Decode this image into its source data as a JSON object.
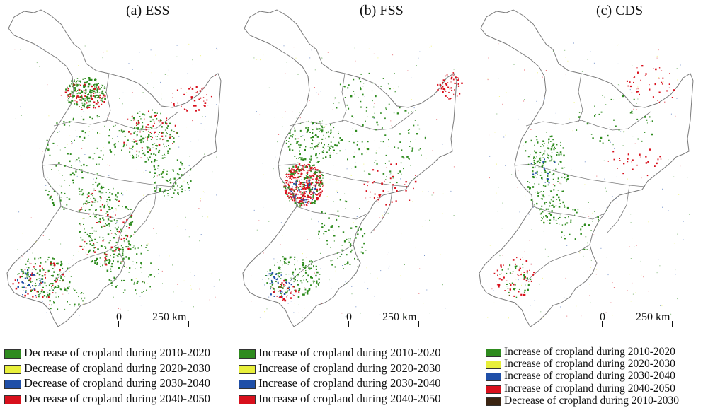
{
  "colors": {
    "green": "#2e8b1e",
    "yellow": "#e8ef3a",
    "blue": "#1f4fa8",
    "red": "#d8101c",
    "brown": "#3b2412",
    "boundary": "#7a7a7a"
  },
  "panels": [
    {
      "title": "(a) ESS",
      "scale": {
        "zero": "0",
        "label": "250 km"
      },
      "legend": [
        {
          "label": "Decrease of cropland during 2010-2020",
          "color": "#2e8b1e"
        },
        {
          "label": "Decrease of cropland during 2020-2030",
          "color": "#e8ef3a"
        },
        {
          "label": "Decrease of cropland during 2030-2040",
          "color": "#1f4fa8"
        },
        {
          "label": "Decrease of cropland during 2040-2050",
          "color": "#d8101c"
        }
      ]
    },
    {
      "title": "(b) FSS",
      "scale": {
        "zero": "0",
        "label": "250 km"
      },
      "legend": [
        {
          "label": "Increase of cropland during 2010-2020",
          "color": "#2e8b1e"
        },
        {
          "label": "Increase of cropland during 2020-2030",
          "color": "#e8ef3a"
        },
        {
          "label": "Increase of cropland during 2030-2040",
          "color": "#1f4fa8"
        },
        {
          "label": "Increase of cropland during 2040-2050",
          "color": "#d8101c"
        }
      ]
    },
    {
      "title": "(c) CDS",
      "scale": {
        "zero": "0",
        "label": "250 km"
      },
      "legend": [
        {
          "label": "Increase of cropland during 2010-2020",
          "color": "#2e8b1e"
        },
        {
          "label": "Increase of cropland during 2020-2030",
          "color": "#e8ef3a"
        },
        {
          "label": "Increase of cropland during 2030-2040",
          "color": "#1f4fa8"
        },
        {
          "label": "Increase of cropland during 2040-2050",
          "color": "#d8101c"
        },
        {
          "label": "Decrease of cropland during 2010-2030",
          "color": "#3b2412"
        }
      ]
    }
  ]
}
